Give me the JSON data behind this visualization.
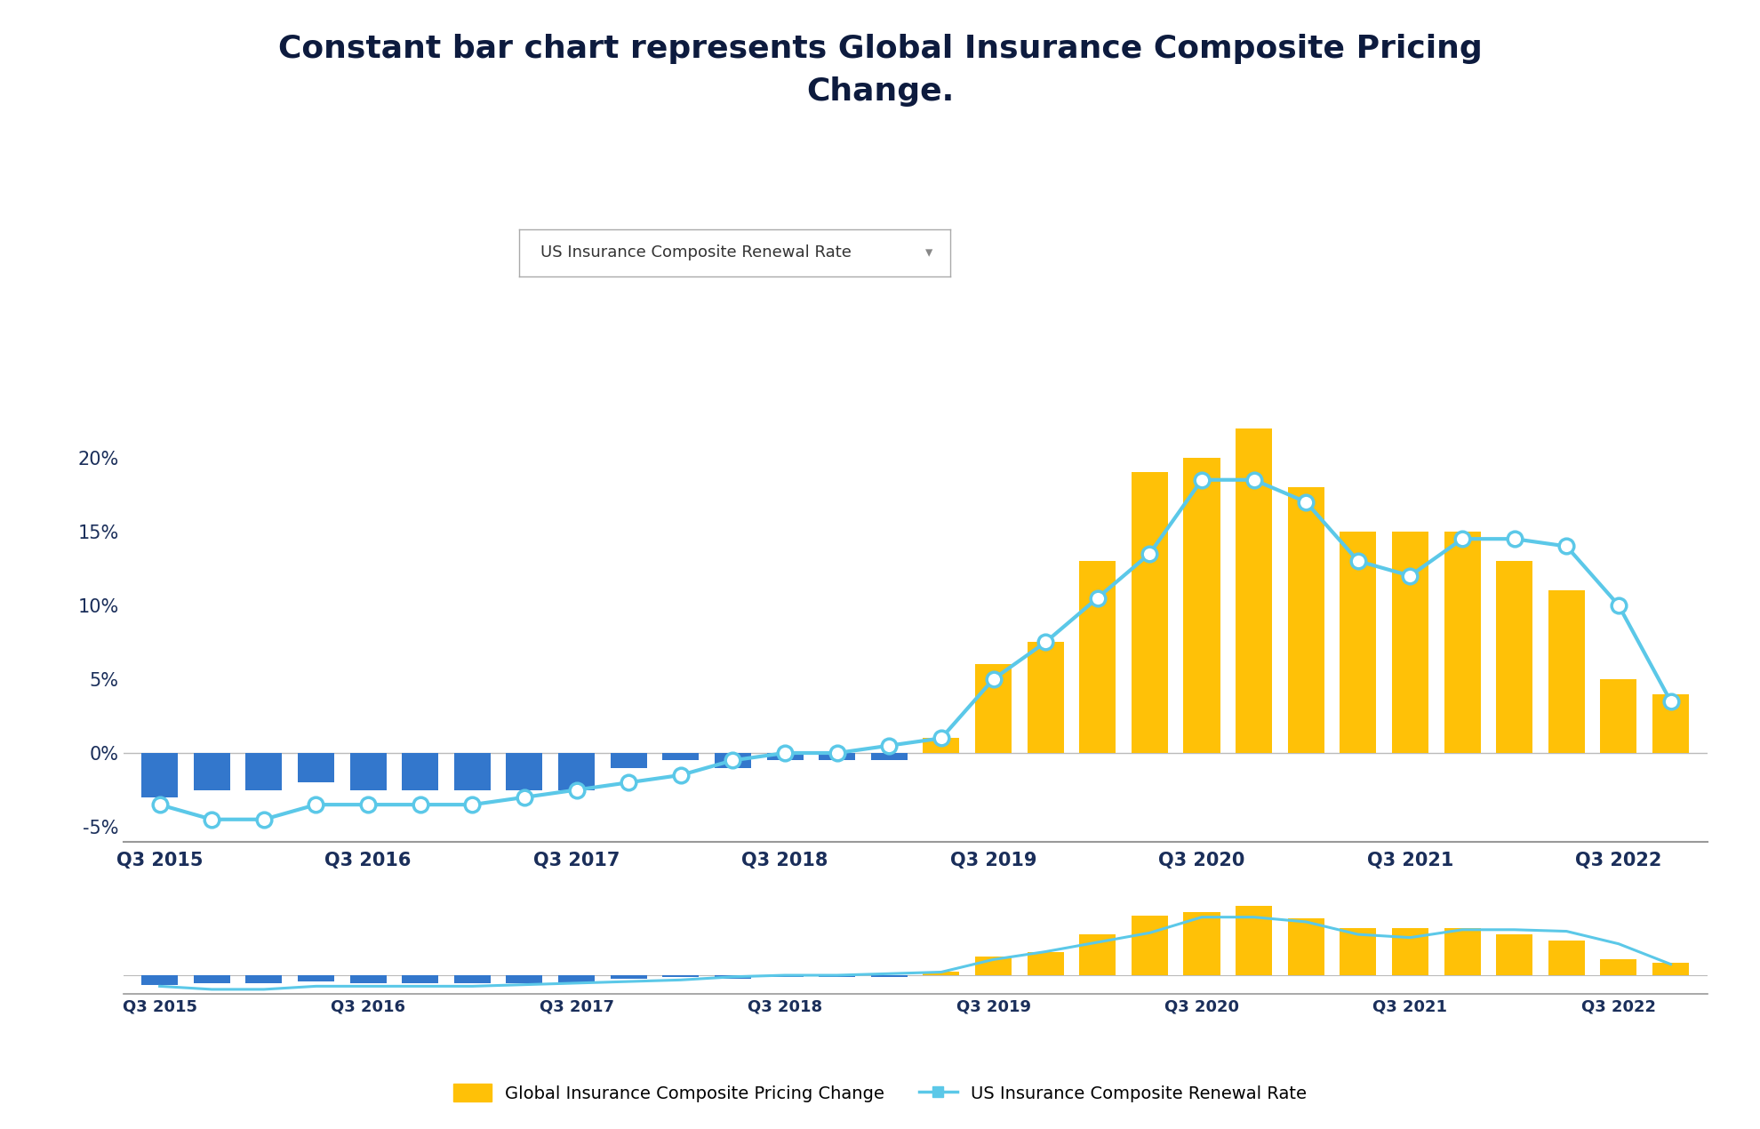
{
  "title": "Constant bar chart represents Global Insurance Composite Pricing\nChange.",
  "title_fontsize": 26,
  "title_color": "#0d1b3e",
  "title_fontweight": "bold",
  "dropdown_text": "US Insurance Composite Renewal Rate",
  "background_color": "#ffffff",
  "bar_color_pos": "#FFC107",
  "bar_color_neg": "#3377CC",
  "line_color": "#5BC8E8",
  "line_marker": "o",
  "line_marker_facecolor": "#ffffff",
  "line_marker_edgecolor": "#5BC8E8",
  "line_linewidth": 3,
  "line_markersize": 12,
  "legend_bar_label": "Global Insurance Composite Pricing Change",
  "legend_line_label": "US Insurance Composite Renewal Rate",
  "x_labels_all": [
    "Q3 2015",
    "",
    "",
    "",
    "Q3 2016",
    "",
    "",
    "",
    "Q3 2017",
    "",
    "",
    "",
    "Q3 2018",
    "",
    "",
    "",
    "Q3 2019",
    "",
    "",
    "",
    "Q3 2020",
    "",
    "",
    "",
    "Q3 2021",
    "",
    "",
    "",
    "Q3 2022",
    ""
  ],
  "bar_values": [
    -3.0,
    -2.5,
    -2.5,
    -2.0,
    -2.5,
    -2.5,
    -2.5,
    -2.5,
    -2.5,
    -1.0,
    -0.5,
    -1.0,
    -0.5,
    -0.5,
    -0.5,
    1.0,
    6.0,
    7.5,
    13.0,
    19.0,
    20.0,
    22.0,
    18.0,
    15.0,
    15.0,
    15.0,
    13.0,
    11.0,
    5.0,
    4.0
  ],
  "line_values": [
    -3.5,
    -4.5,
    -4.5,
    -3.5,
    -3.5,
    -3.5,
    -3.5,
    -3.0,
    -2.5,
    -2.0,
    -1.5,
    -0.5,
    0.0,
    0.0,
    0.5,
    1.0,
    5.0,
    7.5,
    10.5,
    13.5,
    18.5,
    18.5,
    17.0,
    13.0,
    12.0,
    14.5,
    14.5,
    14.0,
    10.0,
    3.5
  ],
  "ylim_main": [
    -6,
    25
  ],
  "yticks_main": [
    -5,
    0,
    5,
    10,
    15,
    20
  ],
  "axis_color": "#cccccc",
  "tick_color": "#1a2e5a",
  "tick_fontsize": 15,
  "mini_tick_fontsize": 13,
  "legend_fontsize": 14
}
